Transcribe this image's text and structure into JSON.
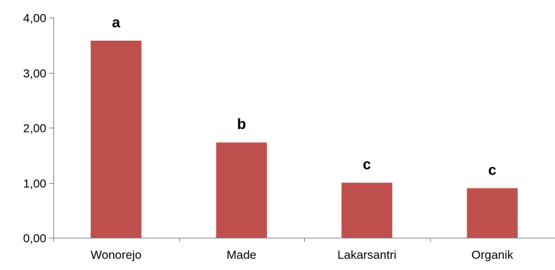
{
  "chart_data": {
    "type": "bar",
    "categories": [
      "Wonorejo",
      "Made",
      "Lakarsantri",
      "Organik"
    ],
    "values": [
      3.58,
      1.73,
      1.0,
      0.9
    ],
    "data_labels": [
      "a",
      "b",
      "c",
      "c"
    ],
    "y_ticks": [
      "0,00",
      "1,00",
      "2,00",
      "3,00",
      "4,00"
    ],
    "ylim": [
      0,
      4
    ],
    "grid": false,
    "legend": "none",
    "bar_color": "#C0504D"
  }
}
